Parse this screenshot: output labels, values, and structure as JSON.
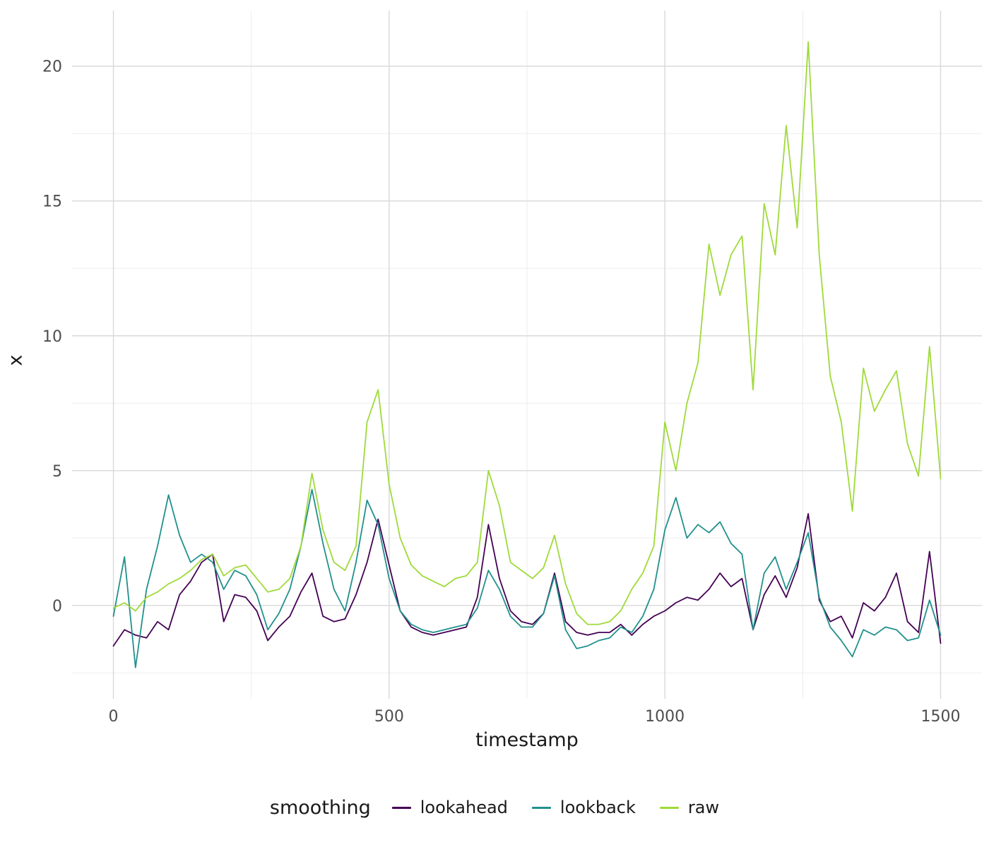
{
  "figure": {
    "xlabel": "timestamp",
    "ylabel": "x",
    "legend_title": "smoothing"
  },
  "colors": {
    "background": "#FFFFFF",
    "grid_major": "#D9D9D9",
    "grid_minor": "#EDEDED",
    "tick_text": "#4D4D4D",
    "title_text": "#1A1A1A",
    "lookahead": "#440154",
    "lookback": "#21908C",
    "raw": "#9FDA3A"
  },
  "chart_data": {
    "type": "line",
    "title": "",
    "xlabel": "timestamp",
    "ylabel": "x",
    "legend_title": "smoothing",
    "legend_position": "bottom",
    "legend_entries": [
      "lookahead",
      "lookback",
      "raw"
    ],
    "x_ticks": [
      0,
      500,
      1000,
      1500
    ],
    "y_ticks": [
      0,
      5,
      10,
      15,
      20
    ],
    "xlim": [
      -75,
      1575
    ],
    "ylim": [
      -3.46,
      22.06
    ],
    "grid": "major+minor",
    "x": [
      0,
      20,
      40,
      60,
      80,
      100,
      120,
      140,
      160,
      180,
      200,
      220,
      240,
      260,
      280,
      300,
      320,
      340,
      360,
      380,
      400,
      420,
      440,
      460,
      480,
      500,
      520,
      540,
      560,
      580,
      600,
      620,
      640,
      660,
      680,
      700,
      720,
      740,
      760,
      780,
      800,
      820,
      840,
      860,
      880,
      900,
      920,
      940,
      960,
      980,
      1000,
      1020,
      1040,
      1060,
      1080,
      1100,
      1120,
      1140,
      1160,
      1180,
      1200,
      1220,
      1240,
      1260,
      1280,
      1300,
      1320,
      1340,
      1360,
      1380,
      1400,
      1420,
      1440,
      1460,
      1480,
      1500
    ],
    "series": [
      {
        "name": "lookahead",
        "color": "#440154",
        "values": [
          -1.5,
          -0.9,
          -1.1,
          -1.2,
          -0.6,
          -0.9,
          0.4,
          0.9,
          1.6,
          1.9,
          -0.6,
          0.4,
          0.3,
          -0.2,
          -1.3,
          -0.8,
          -0.4,
          0.5,
          1.2,
          -0.4,
          -0.6,
          -0.5,
          0.4,
          1.6,
          3.2,
          1.5,
          -0.2,
          -0.8,
          -1.0,
          -1.1,
          -1.0,
          -0.9,
          -0.8,
          0.3,
          3.0,
          1.0,
          -0.2,
          -0.6,
          -0.7,
          -0.3,
          1.2,
          -0.6,
          -1.0,
          -1.1,
          -1.0,
          -1.0,
          -0.7,
          -1.1,
          -0.7,
          -0.4,
          -0.2,
          0.1,
          0.3,
          0.2,
          0.6,
          1.2,
          0.7,
          1.0,
          -0.9,
          0.4,
          1.1,
          0.3,
          1.4,
          3.4,
          0.2,
          -0.6,
          -0.4,
          -1.2,
          0.1,
          -0.2,
          0.3,
          1.2,
          -0.6,
          -1.0,
          2.0,
          -1.4
        ]
      },
      {
        "name": "lookback",
        "color": "#21908C",
        "values": [
          -0.4,
          1.8,
          -2.3,
          0.6,
          2.2,
          4.1,
          2.6,
          1.6,
          1.9,
          1.6,
          0.6,
          1.3,
          1.1,
          0.4,
          -0.9,
          -0.3,
          0.6,
          2.2,
          4.3,
          2.3,
          0.6,
          -0.2,
          1.6,
          3.9,
          3.0,
          1.0,
          -0.2,
          -0.7,
          -0.9,
          -1.0,
          -0.9,
          -0.8,
          -0.7,
          -0.1,
          1.3,
          0.6,
          -0.4,
          -0.8,
          -0.8,
          -0.3,
          1.1,
          -0.9,
          -1.6,
          -1.5,
          -1.3,
          -1.2,
          -0.8,
          -1.0,
          -0.4,
          0.6,
          2.8,
          4.0,
          2.5,
          3.0,
          2.7,
          3.1,
          2.3,
          1.9,
          -0.9,
          1.2,
          1.8,
          0.6,
          1.6,
          2.7,
          0.3,
          -0.8,
          -1.3,
          -1.9,
          -0.9,
          -1.1,
          -0.8,
          -0.9,
          -1.3,
          -1.2,
          0.2,
          -1.1
        ]
      },
      {
        "name": "raw",
        "color": "#9FDA3A",
        "values": [
          -0.1,
          0.1,
          -0.2,
          0.3,
          0.5,
          0.8,
          1.0,
          1.3,
          1.7,
          1.9,
          1.1,
          1.4,
          1.5,
          1.0,
          0.5,
          0.6,
          1.0,
          2.2,
          4.9,
          2.8,
          1.6,
          1.3,
          2.2,
          6.8,
          8.0,
          4.5,
          2.5,
          1.5,
          1.1,
          0.9,
          0.7,
          1.0,
          1.1,
          1.6,
          5.0,
          3.7,
          1.6,
          1.3,
          1.0,
          1.4,
          2.6,
          0.8,
          -0.3,
          -0.7,
          -0.7,
          -0.6,
          -0.2,
          0.6,
          1.2,
          2.2,
          6.8,
          5.0,
          7.5,
          9.0,
          13.4,
          11.5,
          13.0,
          13.7,
          8.0,
          14.9,
          13.0,
          17.8,
          14.0,
          20.9,
          13.0,
          8.5,
          6.8,
          3.5,
          8.8,
          7.2,
          8.0,
          8.7,
          6.0,
          4.8,
          9.6,
          4.7
        ]
      }
    ]
  }
}
